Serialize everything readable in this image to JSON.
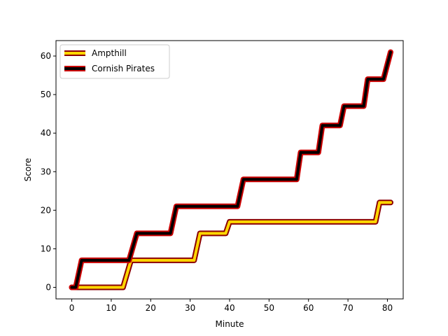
{
  "chart_data": {
    "type": "line",
    "title": "",
    "xlabel": "Minute",
    "ylabel": "Score",
    "xlim": [
      -4,
      84
    ],
    "ylim": [
      -3,
      64
    ],
    "xticks": [
      0,
      10,
      20,
      30,
      40,
      50,
      60,
      70,
      80
    ],
    "yticks": [
      0,
      10,
      20,
      30,
      40,
      50,
      60
    ],
    "grid": false,
    "legend_position": "top-left",
    "series": [
      {
        "name": "Ampthill",
        "line_color": "#ffd700",
        "edge_color": "#8b0000",
        "x": [
          0,
          13,
          15,
          31,
          32.5,
          39,
          40,
          77,
          78,
          80.8
        ],
        "y": [
          0,
          0,
          7,
          7,
          14,
          14,
          17,
          17,
          22,
          22
        ]
      },
      {
        "name": "Cornish Pirates",
        "line_color": "#000000",
        "edge_color": "#cc0000",
        "x": [
          0,
          1,
          2.5,
          14.5,
          16.5,
          25,
          26.5,
          42,
          43.5,
          57,
          58,
          62.5,
          63.5,
          68,
          69,
          74,
          75,
          78,
          79,
          80.8
        ],
        "y": [
          0,
          0,
          7,
          7,
          14,
          14,
          21,
          21,
          28,
          28,
          35,
          35,
          42,
          42,
          47,
          47,
          54,
          54,
          54,
          61
        ]
      }
    ]
  }
}
